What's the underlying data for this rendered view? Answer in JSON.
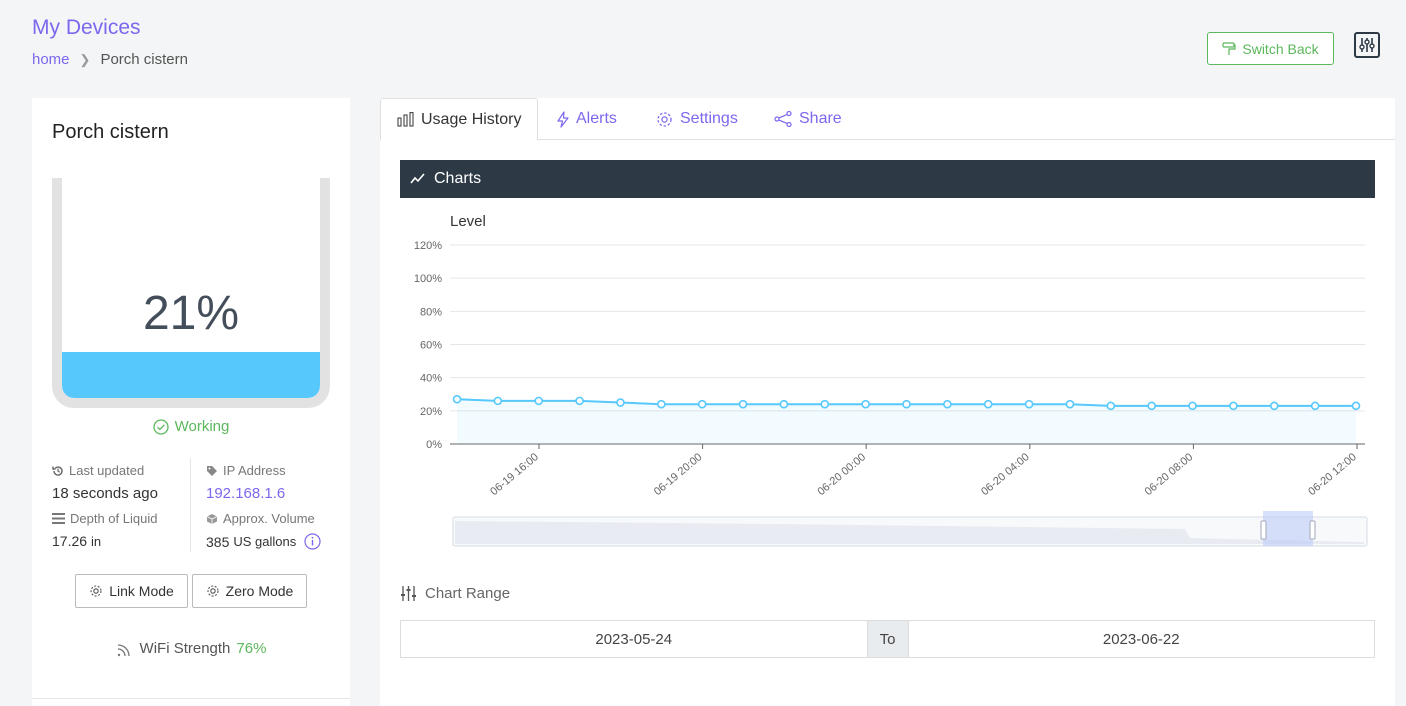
{
  "header": {
    "title": "My Devices",
    "breadcrumb_home": "home",
    "breadcrumb_current": "Porch cistern",
    "switch_back_label": "Switch Back"
  },
  "device": {
    "name": "Porch cistern",
    "level_percent_text": "21%",
    "level_fraction": 0.21,
    "status": "Working",
    "last_updated_label": "Last updated",
    "last_updated_value": "18 seconds ago",
    "ip_label": "IP Address",
    "ip_value": "192.168.1.6",
    "depth_label": "Depth of Liquid",
    "depth_value": "17.26",
    "depth_unit": "in",
    "volume_label": "Approx. Volume",
    "volume_value": "385",
    "volume_unit": "US gallons",
    "link_mode_label": "Link Mode",
    "zero_mode_label": "Zero Mode",
    "wifi_label": "WiFi Strength",
    "wifi_value": "76%"
  },
  "tabs": [
    {
      "label": "Usage History",
      "icon": "bar-chart-icon",
      "active": true
    },
    {
      "label": "Alerts",
      "icon": "bolt-icon",
      "active": false
    },
    {
      "label": "Settings",
      "icon": "gear-icon",
      "active": false
    },
    {
      "label": "Share",
      "icon": "share-icon",
      "active": false
    }
  ],
  "charts_panel": {
    "title": "Charts",
    "chart_range_label": "Chart Range",
    "range_from": "2023-05-24",
    "range_to_label": "To",
    "range_to": "2023-06-22"
  },
  "colors": {
    "accent": "#7b68ee",
    "success": "#5cb85c",
    "water": "#56c8fc",
    "header_dark": "#2d3a46"
  },
  "chart_data": {
    "type": "line",
    "title": "Level",
    "ylim": [
      0,
      120
    ],
    "yticks": [
      "0%",
      "20%",
      "40%",
      "60%",
      "80%",
      "100%",
      "120%"
    ],
    "xticks": [
      "06-19 16:00",
      "06-19 20:00",
      "06-20 00:00",
      "06-20 04:00",
      "06-20 08:00",
      "06-20 12:00"
    ],
    "grid": true,
    "series": [
      {
        "values": [
          27,
          26,
          26,
          26,
          25,
          24,
          24,
          24,
          24,
          24,
          24,
          24,
          24,
          24,
          24,
          24,
          23,
          23,
          23,
          23,
          23,
          23,
          23
        ]
      }
    ]
  }
}
